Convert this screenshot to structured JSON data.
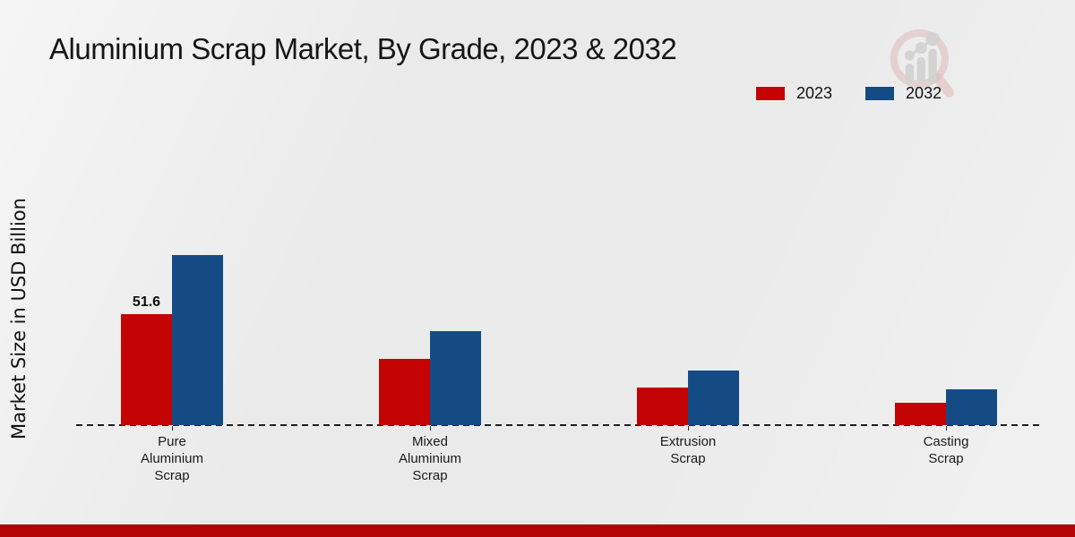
{
  "page": {
    "title": "Aluminium Scrap Market, By Grade, 2023 & 2032"
  },
  "axis": {
    "y_label": "Market Size in USD Billion"
  },
  "legend": {
    "items": [
      {
        "label": "2023",
        "color": "#c40404"
      },
      {
        "label": "2032",
        "color": "#144b84"
      }
    ]
  },
  "footer": {
    "stripe_color": "#b50404"
  },
  "logo": {
    "icon": "magnifier-bar-chart-logo",
    "ring_color": "#d9a8a8",
    "glyph_color": "#cfcfcf"
  },
  "chart_data": {
    "type": "bar",
    "title": "Aluminium Scrap Market, By Grade, 2023 & 2032",
    "ylabel": "Market Size in USD Billion",
    "xlabel": "",
    "categories": [
      "Pure Aluminium Scrap",
      "Mixed Aluminium Scrap",
      "Extrusion Scrap",
      "Casting Scrap"
    ],
    "category_lines": [
      [
        "Pure",
        "Aluminium",
        "Scrap"
      ],
      [
        "Mixed",
        "Aluminium",
        "Scrap"
      ],
      [
        "Extrusion",
        "Scrap"
      ],
      [
        "Casting",
        "Scrap"
      ]
    ],
    "series": [
      {
        "name": "2023",
        "color": "#c40404",
        "values": [
          51.6,
          30.8,
          17.5,
          10.4
        ]
      },
      {
        "name": "2032",
        "color": "#144b84",
        "values": [
          79.1,
          43.7,
          25.4,
          16.6
        ]
      }
    ],
    "value_labels": [
      {
        "category_index": 0,
        "series_index": 0,
        "text": "51.6"
      }
    ],
    "units": "USD Billion",
    "ylim": [
      0,
      85
    ],
    "grid": false,
    "y_axis_ticks_visible": false,
    "baseline_style": "dashed",
    "legend_position": "top-right"
  }
}
